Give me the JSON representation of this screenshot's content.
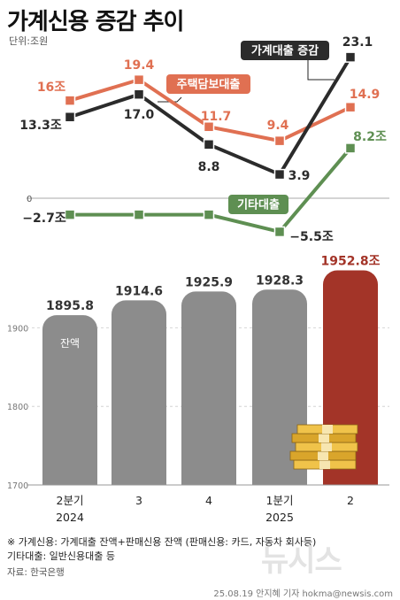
{
  "title": "가계신용 증감 추이",
  "unit_label": "단위:조원",
  "chart_data": [
    {
      "type": "line",
      "categories": [
        "2분기 2024",
        "3",
        "4",
        "1분기 2025",
        "2"
      ],
      "series": [
        {
          "name": "가계대출 증감",
          "values": [
            13.3,
            17.0,
            8.8,
            3.9,
            23.1
          ],
          "labels": [
            "13.3조",
            "17.0",
            "8.8",
            "3.9",
            "23.1"
          ],
          "color": "#2b2b2b"
        },
        {
          "name": "주택담보대출",
          "values": [
            16,
            19.4,
            11.7,
            9.4,
            14.9
          ],
          "labels": [
            "16조",
            "19.4",
            "11.7",
            "9.4",
            "14.9"
          ],
          "color": "#e07052"
        },
        {
          "name": "기타대출",
          "values": [
            -2.7,
            -2.7,
            -2.7,
            -5.5,
            8.2
          ],
          "labels": [
            "−2.7조",
            "",
            "",
            "−5.5조",
            "8.2조"
          ],
          "color": "#5e8f52"
        }
      ],
      "zero_label": "0",
      "ylim": [
        -8,
        26
      ]
    },
    {
      "type": "bar",
      "categories": [
        "2분기 2024",
        "3",
        "4",
        "1분기 2025",
        "2"
      ],
      "values": [
        1895.8,
        1914.6,
        1925.9,
        1928.3,
        1952.8
      ],
      "value_labels": [
        "1895.8",
        "1914.6",
        "1925.9",
        "1928.3",
        "1952.8조"
      ],
      "bar_note": "잔액",
      "yticks": [
        1700,
        1800,
        1900
      ],
      "ylim": [
        1700,
        1960
      ],
      "colors": {
        "normal": "#8c8c8c",
        "highlight": "#a33428",
        "highlight_text": "#a33428"
      }
    }
  ],
  "x_labels": [
    {
      "line1": "2분기",
      "line2": "2024"
    },
    {
      "line1": "3",
      "line2": ""
    },
    {
      "line1": "4",
      "line2": ""
    },
    {
      "line1": "1분기",
      "line2": "2025"
    },
    {
      "line1": "2",
      "line2": ""
    }
  ],
  "footnote1": "※ 가계신용: 가계대출 잔액+판매신용 잔액 (판매신용: 카드, 자동차 회사등)",
  "footnote2": "기타대출: 일반신용대출 등",
  "source": "자료: 한국은행",
  "logo": "뉴시스",
  "credit": "25.08.19 안지혜 기자 hokma@newsis.com"
}
